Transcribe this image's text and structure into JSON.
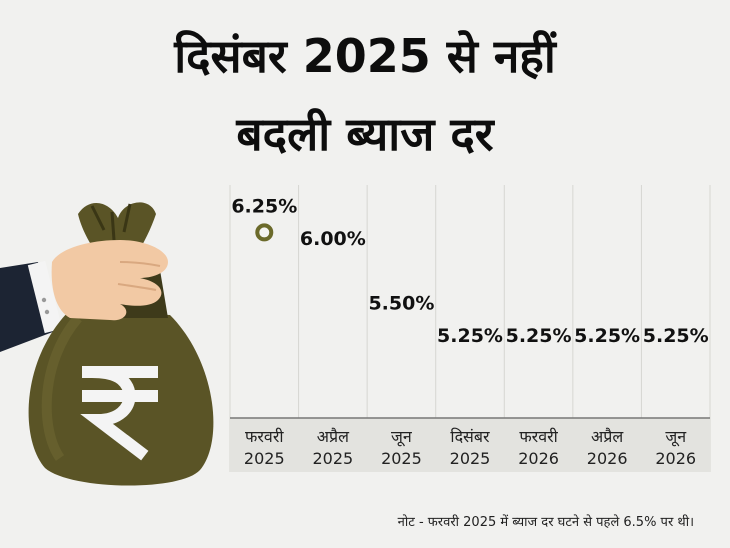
{
  "title": {
    "line1": "दिसंबर 2025 से नहीं",
    "line2": "बदली ब्याज दर"
  },
  "note": "नोट - फरवरी 2025 में ब्याज दर घटने से पहले 6.5% पर थी।",
  "colors": {
    "background": "#f1f1ef",
    "bag": "#5a5426",
    "marker": "#6b6a2a",
    "axis_band": "#e3e3df"
  },
  "icons": [
    "money-bag-icon",
    "rupee-icon",
    "hand-icon"
  ],
  "chart_data": {
    "type": "line",
    "series_style": "data-labels-only",
    "categories": [
      [
        "फरवरी",
        "2025"
      ],
      [
        "अप्रैल",
        "2025"
      ],
      [
        "जून",
        "2025"
      ],
      [
        "दिसंबर",
        "2025"
      ],
      [
        "फरवरी",
        "2026"
      ],
      [
        "अप्रैल",
        "2026"
      ],
      [
        "जून",
        "2026"
      ]
    ],
    "values": [
      6.25,
      6.0,
      5.5,
      5.25,
      5.25,
      5.25,
      5.25
    ],
    "data_labels": [
      "6.25%",
      "6.00%",
      "5.50%",
      "5.25%",
      "5.25%",
      "5.25%",
      "5.25%"
    ],
    "marker_on_index": 0,
    "ylim": [
      4.6,
      6.4
    ],
    "grid": "vertical",
    "xlabel": "",
    "ylabel": ""
  }
}
